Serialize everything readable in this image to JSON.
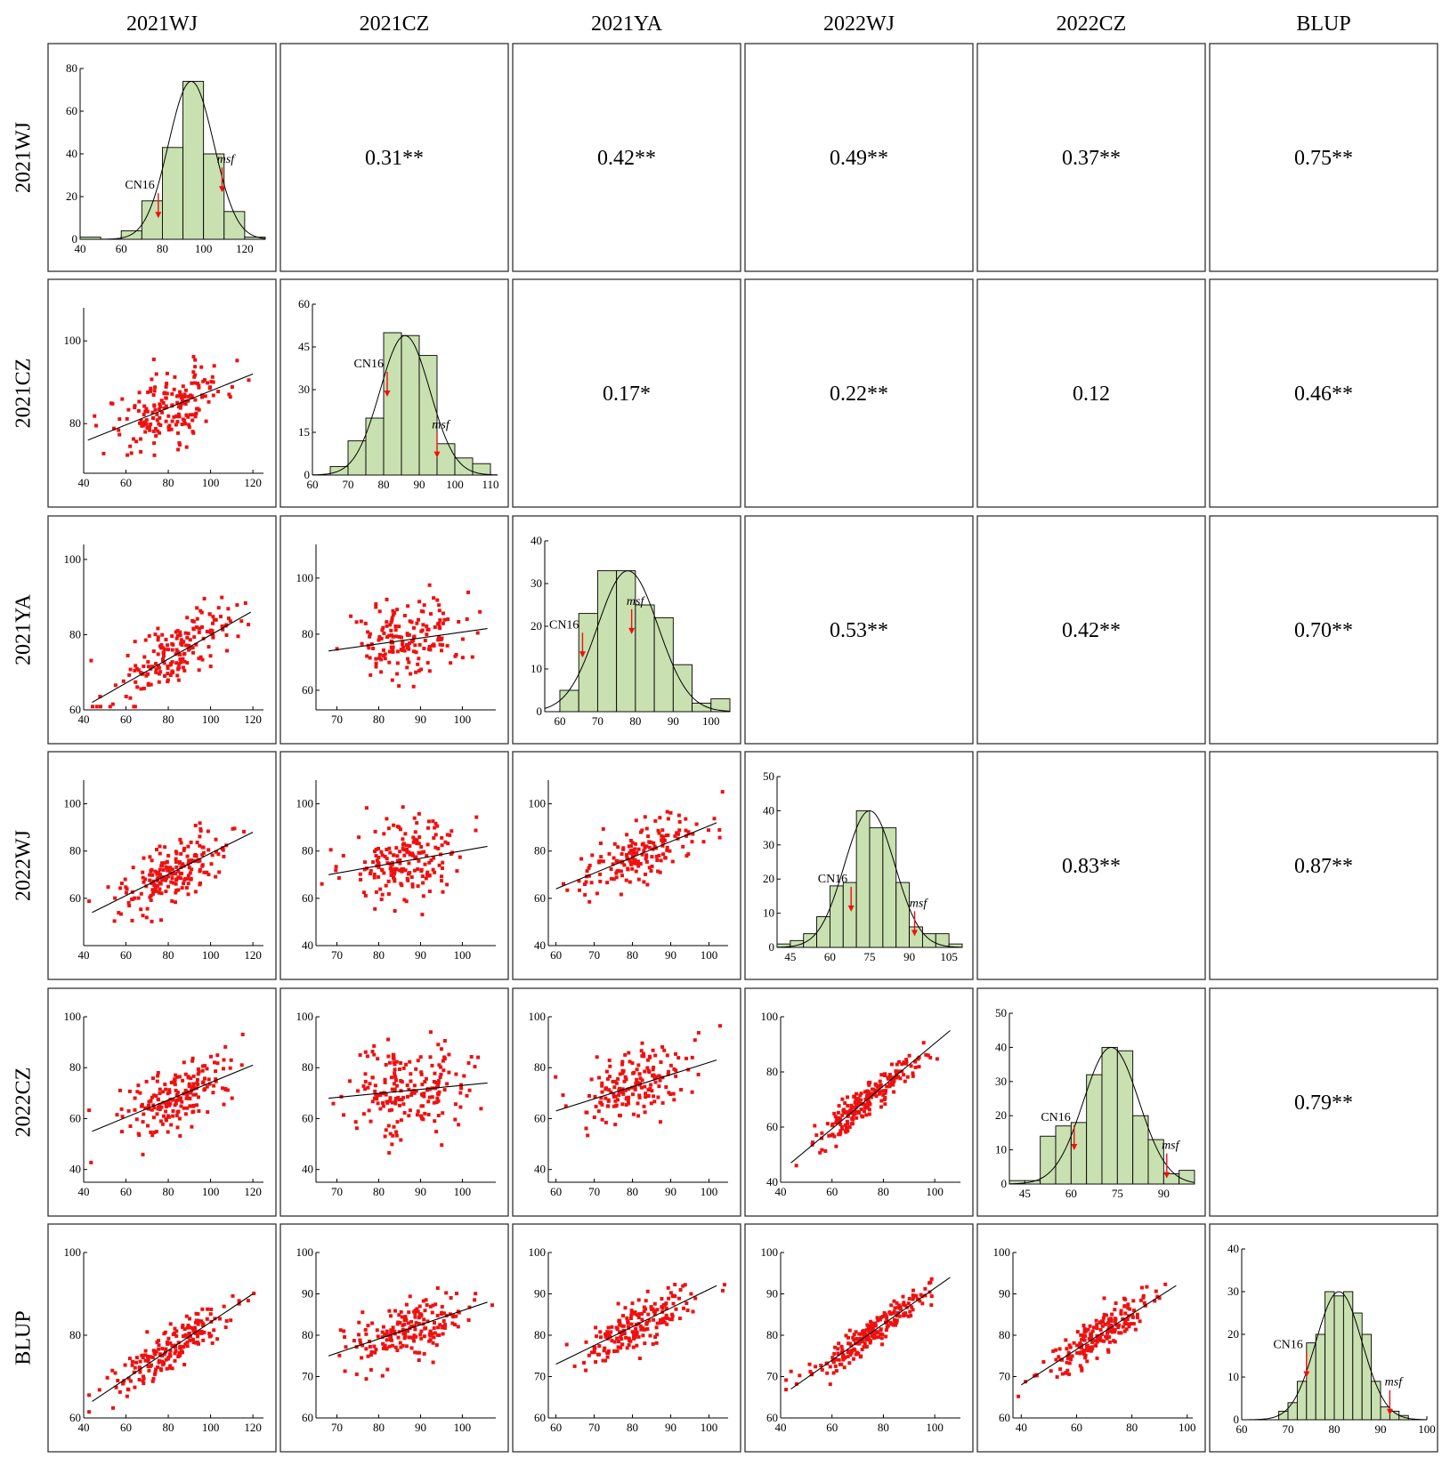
{
  "labels": [
    "2021WJ",
    "2021CZ",
    "2021YA",
    "2022WJ",
    "2022CZ",
    "BLUP"
  ],
  "colors": {
    "bar_fill": "#c9e0b0",
    "point": "#ee1111",
    "arrow": "#ee1111",
    "line": "#000000"
  },
  "chart_data": {
    "type": "scatter-matrix",
    "variables": [
      "2021WJ",
      "2021CZ",
      "2021YA",
      "2022WJ",
      "2022CZ",
      "BLUP"
    ],
    "correlations": [
      {
        "row": 0,
        "col": 1,
        "text": "0.31**"
      },
      {
        "row": 0,
        "col": 2,
        "text": "0.42**"
      },
      {
        "row": 0,
        "col": 3,
        "text": "0.49**"
      },
      {
        "row": 0,
        "col": 4,
        "text": "0.37**"
      },
      {
        "row": 0,
        "col": 5,
        "text": "0.75**"
      },
      {
        "row": 1,
        "col": 2,
        "text": "0.17*"
      },
      {
        "row": 1,
        "col": 3,
        "text": "0.22**"
      },
      {
        "row": 1,
        "col": 4,
        "text": "0.12"
      },
      {
        "row": 1,
        "col": 5,
        "text": "0.46**"
      },
      {
        "row": 2,
        "col": 3,
        "text": "0.53**"
      },
      {
        "row": 2,
        "col": 4,
        "text": "0.42**"
      },
      {
        "row": 2,
        "col": 5,
        "text": "0.70**"
      },
      {
        "row": 3,
        "col": 4,
        "text": "0.83**"
      },
      {
        "row": 3,
        "col": 5,
        "text": "0.87**"
      },
      {
        "row": 4,
        "col": 5,
        "text": "0.79**"
      }
    ],
    "histograms": [
      {
        "name": "2021WJ",
        "xlim": [
          40,
          130
        ],
        "ylim": [
          0,
          80
        ],
        "xticks": [
          40,
          60,
          80,
          100,
          120
        ],
        "yticks": [
          0,
          20,
          40,
          60,
          80
        ],
        "bin_width": 10,
        "bin_starts": [
          40,
          50,
          60,
          70,
          80,
          90,
          100,
          110,
          120
        ],
        "counts": [
          1,
          0,
          4,
          18,
          43,
          74,
          40,
          13,
          1
        ],
        "curve": {
          "mean": 94,
          "sd": 11,
          "peak": 74
        },
        "annotations": [
          {
            "text": "CN16",
            "x": 78,
            "italic": false
          },
          {
            "text": "msf",
            "x": 109,
            "italic": true
          }
        ]
      },
      {
        "name": "2021CZ",
        "xlim": [
          60,
          112
        ],
        "ylim": [
          0,
          60
        ],
        "xticks": [
          60,
          70,
          80,
          90,
          100,
          110
        ],
        "yticks": [
          0,
          15,
          30,
          45,
          60
        ],
        "bin_width": 5,
        "bin_starts": [
          60,
          65,
          70,
          75,
          80,
          85,
          90,
          95,
          100,
          105
        ],
        "counts": [
          0,
          3,
          12,
          20,
          50,
          49,
          42,
          11,
          6,
          4
        ],
        "curve": {
          "mean": 86,
          "sd": 7,
          "peak": 49
        },
        "annotations": [
          {
            "text": "CN16",
            "x": 81,
            "italic": false
          },
          {
            "text": "msf",
            "x": 95,
            "italic": true
          }
        ]
      },
      {
        "name": "2021YA",
        "xlim": [
          56,
          105
        ],
        "ylim": [
          0,
          40
        ],
        "xticks": [
          60,
          70,
          80,
          90,
          100
        ],
        "yticks": [
          0,
          10,
          20,
          30,
          40
        ],
        "bin_width": 5,
        "bin_starts": [
          60,
          65,
          70,
          75,
          80,
          85,
          90,
          95,
          100
        ],
        "counts": [
          5,
          23,
          33,
          33,
          25,
          22,
          11,
          2,
          3
        ],
        "curve": {
          "mean": 78,
          "sd": 8,
          "peak": 33
        },
        "annotations": [
          {
            "text": "CN16",
            "x": 66,
            "italic": false
          },
          {
            "text": "msf",
            "x": 79,
            "italic": true
          }
        ]
      },
      {
        "name": "2022WJ",
        "xlim": [
          40,
          110
        ],
        "ylim": [
          0,
          50
        ],
        "xticks": [
          45,
          60,
          75,
          90,
          105
        ],
        "yticks": [
          0,
          10,
          20,
          30,
          40,
          50
        ],
        "bin_width": 5,
        "bin_starts": [
          40,
          45,
          50,
          55,
          60,
          65,
          70,
          75,
          80,
          85,
          90,
          95,
          100,
          105
        ],
        "counts": [
          1,
          2,
          4,
          9,
          18,
          19,
          40,
          35,
          35,
          19,
          6,
          4,
          4,
          1
        ],
        "curve": {
          "mean": 75,
          "sd": 9.5,
          "peak": 40
        },
        "annotations": [
          {
            "text": "CN16",
            "x": 68,
            "italic": false
          },
          {
            "text": "msf",
            "x": 92,
            "italic": true
          }
        ]
      },
      {
        "name": "2022CZ",
        "xlim": [
          40,
          100
        ],
        "ylim": [
          0,
          50
        ],
        "xticks": [
          45,
          60,
          75,
          90
        ],
        "yticks": [
          0,
          10,
          20,
          30,
          40,
          50
        ],
        "bin_width": 5,
        "bin_starts": [
          40,
          45,
          50,
          55,
          60,
          65,
          70,
          75,
          80,
          85,
          90,
          95
        ],
        "counts": [
          1,
          1,
          14,
          17,
          18,
          32,
          40,
          39,
          20,
          13,
          3,
          4
        ],
        "curve": {
          "mean": 73,
          "sd": 9,
          "peak": 40
        },
        "annotations": [
          {
            "text": "CN16",
            "x": 61,
            "italic": false
          },
          {
            "text": "msf",
            "x": 91,
            "italic": true
          }
        ]
      },
      {
        "name": "BLUP",
        "xlim": [
          60,
          100
        ],
        "ylim": [
          0,
          40
        ],
        "xticks": [
          60,
          70,
          80,
          90,
          100
        ],
        "yticks": [
          0,
          10,
          20,
          30,
          40
        ],
        "bin_width": 2,
        "bin_starts": [
          64,
          66,
          68,
          70,
          72,
          74,
          76,
          78,
          80,
          82,
          84,
          86,
          88,
          90,
          92,
          94
        ],
        "counts": [
          0,
          0,
          2,
          4,
          9,
          18,
          20,
          30,
          29,
          30,
          25,
          20,
          9,
          3,
          2,
          1
        ],
        "curve": {
          "mean": 81,
          "sd": 5,
          "peak": 30
        },
        "annotations": [
          {
            "text": "CN16",
            "x": 74,
            "italic": false
          },
          {
            "text": "msf",
            "x": 92,
            "italic": true
          }
        ]
      }
    ],
    "scatters": [
      {
        "row": 1,
        "col": 0,
        "xlim": [
          40,
          125
        ],
        "ylim": [
          68,
          108
        ],
        "xticks": [
          40,
          60,
          80,
          100,
          120
        ],
        "yticks": [
          80,
          100
        ],
        "line": [
          [
            42,
            76
          ],
          [
            120,
            92
          ]
        ],
        "n": 190,
        "corr": 0.31
      },
      {
        "row": 2,
        "col": 0,
        "xlim": [
          40,
          125
        ],
        "ylim": [
          60,
          104
        ],
        "xticks": [
          40,
          60,
          80,
          100,
          120
        ],
        "yticks": [
          60,
          80,
          100
        ],
        "line": [
          [
            44,
            62
          ],
          [
            119,
            86
          ]
        ],
        "n": 190,
        "corr": 0.42
      },
      {
        "row": 2,
        "col": 1,
        "xlim": [
          65,
          108
        ],
        "ylim": [
          53,
          112
        ],
        "xticks": [
          70,
          80,
          90,
          100
        ],
        "yticks": [
          60,
          80,
          100
        ],
        "line": [
          [
            68,
            74
          ],
          [
            106,
            82
          ]
        ],
        "n": 170,
        "corr": 0.17
      },
      {
        "row": 3,
        "col": 0,
        "xlim": [
          40,
          125
        ],
        "ylim": [
          40,
          110
        ],
        "xticks": [
          40,
          60,
          80,
          100,
          120
        ],
        "yticks": [
          60,
          80,
          100
        ],
        "line": [
          [
            44,
            54
          ],
          [
            120,
            88
          ]
        ],
        "n": 200,
        "corr": 0.49
      },
      {
        "row": 3,
        "col": 1,
        "xlim": [
          65,
          108
        ],
        "ylim": [
          40,
          110
        ],
        "xticks": [
          70,
          80,
          90,
          100
        ],
        "yticks": [
          40,
          60,
          80,
          100
        ],
        "line": [
          [
            68,
            70
          ],
          [
            106,
            82
          ]
        ],
        "n": 200,
        "corr": 0.22
      },
      {
        "row": 3,
        "col": 2,
        "xlim": [
          58,
          105
        ],
        "ylim": [
          40,
          110
        ],
        "xticks": [
          60,
          70,
          80,
          90,
          100
        ],
        "yticks": [
          40,
          60,
          80,
          100
        ],
        "line": [
          [
            60,
            64
          ],
          [
            102,
            92
          ]
        ],
        "n": 180,
        "corr": 0.53
      },
      {
        "row": 4,
        "col": 0,
        "xlim": [
          40,
          125
        ],
        "ylim": [
          35,
          100
        ],
        "xticks": [
          40,
          60,
          80,
          100,
          120
        ],
        "yticks": [
          40,
          60,
          80,
          100
        ],
        "line": [
          [
            44,
            55
          ],
          [
            120,
            81
          ]
        ],
        "n": 200,
        "corr": 0.37
      },
      {
        "row": 4,
        "col": 1,
        "xlim": [
          65,
          108
        ],
        "ylim": [
          35,
          100
        ],
        "xticks": [
          70,
          80,
          90,
          100
        ],
        "yticks": [
          40,
          60,
          80,
          100
        ],
        "line": [
          [
            68,
            68
          ],
          [
            106,
            74
          ]
        ],
        "n": 200,
        "corr": 0.12
      },
      {
        "row": 4,
        "col": 2,
        "xlim": [
          58,
          105
        ],
        "ylim": [
          35,
          100
        ],
        "xticks": [
          60,
          70,
          80,
          90,
          100
        ],
        "yticks": [
          40,
          60,
          80,
          100
        ],
        "line": [
          [
            60,
            63
          ],
          [
            102,
            83
          ]
        ],
        "n": 180,
        "corr": 0.42
      },
      {
        "row": 4,
        "col": 3,
        "xlim": [
          40,
          110
        ],
        "ylim": [
          40,
          100
        ],
        "xticks": [
          40,
          60,
          80,
          100
        ],
        "yticks": [
          40,
          60,
          80,
          100
        ],
        "line": [
          [
            44,
            47
          ],
          [
            106,
            95
          ]
        ],
        "n": 220,
        "corr": 0.83
      },
      {
        "row": 5,
        "col": 0,
        "xlim": [
          40,
          125
        ],
        "ylim": [
          60,
          100
        ],
        "xticks": [
          40,
          60,
          80,
          100,
          120
        ],
        "yticks": [
          60,
          80,
          100
        ],
        "line": [
          [
            44,
            64
          ],
          [
            120,
            90
          ]
        ],
        "n": 200,
        "corr": 0.75
      },
      {
        "row": 5,
        "col": 1,
        "xlim": [
          65,
          108
        ],
        "ylim": [
          60,
          100
        ],
        "xticks": [
          70,
          80,
          90,
          100
        ],
        "yticks": [
          60,
          70,
          80,
          90,
          100
        ],
        "line": [
          [
            68,
            75
          ],
          [
            106,
            88
          ]
        ],
        "n": 200,
        "corr": 0.46
      },
      {
        "row": 5,
        "col": 2,
        "xlim": [
          58,
          105
        ],
        "ylim": [
          60,
          100
        ],
        "xticks": [
          60,
          70,
          80,
          90,
          100
        ],
        "yticks": [
          60,
          70,
          80,
          90,
          100
        ],
        "line": [
          [
            60,
            73
          ],
          [
            102,
            92
          ]
        ],
        "n": 190,
        "corr": 0.7
      },
      {
        "row": 5,
        "col": 3,
        "xlim": [
          40,
          110
        ],
        "ylim": [
          60,
          100
        ],
        "xticks": [
          40,
          60,
          80,
          100
        ],
        "yticks": [
          60,
          70,
          80,
          90,
          100
        ],
        "line": [
          [
            44,
            67
          ],
          [
            106,
            94
          ]
        ],
        "n": 220,
        "corr": 0.87
      },
      {
        "row": 5,
        "col": 4,
        "xlim": [
          37,
          102
        ],
        "ylim": [
          60,
          100
        ],
        "xticks": [
          40,
          60,
          80,
          100
        ],
        "yticks": [
          60,
          70,
          80,
          90,
          100
        ],
        "line": [
          [
            40,
            68
          ],
          [
            96,
            92
          ]
        ],
        "n": 200,
        "corr": 0.79
      }
    ]
  }
}
